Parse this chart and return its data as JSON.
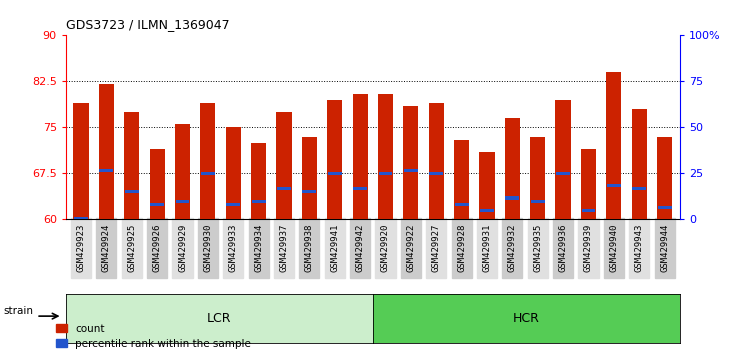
{
  "title": "GDS3723 / ILMN_1369047",
  "samples": [
    "GSM429923",
    "GSM429924",
    "GSM429925",
    "GSM429926",
    "GSM429929",
    "GSM429930",
    "GSM429933",
    "GSM429934",
    "GSM429937",
    "GSM429938",
    "GSM429941",
    "GSM429942",
    "GSM429920",
    "GSM429922",
    "GSM429927",
    "GSM429928",
    "GSM429931",
    "GSM429932",
    "GSM429935",
    "GSM429936",
    "GSM429939",
    "GSM429940",
    "GSM429943",
    "GSM429944"
  ],
  "bar_heights": [
    79.0,
    82.0,
    77.5,
    71.5,
    75.5,
    79.0,
    75.0,
    72.5,
    77.5,
    73.5,
    79.5,
    80.5,
    80.5,
    78.5,
    79.0,
    73.0,
    71.0,
    76.5,
    73.5,
    79.5,
    71.5,
    84.0,
    78.0,
    73.5
  ],
  "blue_dot_values": [
    60.2,
    68.0,
    64.5,
    62.5,
    63.0,
    67.5,
    62.5,
    63.0,
    65.0,
    64.5,
    67.5,
    65.0,
    67.5,
    68.0,
    67.5,
    62.5,
    61.5,
    63.5,
    63.0,
    67.5,
    61.5,
    65.5,
    65.0,
    62.0
  ],
  "group_labels": [
    "LCR",
    "HCR"
  ],
  "group_ranges": [
    [
      0,
      12
    ],
    [
      12,
      24
    ]
  ],
  "ylim_left": [
    60,
    90
  ],
  "ylim_right": [
    0,
    100
  ],
  "yticks_left": [
    60,
    67.5,
    75,
    82.5,
    90
  ],
  "yticks_right": [
    0,
    25,
    50,
    75,
    100
  ],
  "ytick_labels_left": [
    "60",
    "67.5",
    "75",
    "82.5",
    "90"
  ],
  "ytick_labels_right": [
    "0",
    "25",
    "50",
    "75",
    "100%"
  ],
  "hlines": [
    67.5,
    75.0,
    82.5
  ],
  "bar_color": "#cc2200",
  "dot_color": "#2255cc",
  "bar_width": 0.6,
  "legend_count_label": "count",
  "legend_percentile_label": "percentile rank within the sample",
  "strain_label": "strain",
  "lcr_color": "#cceecc",
  "hcr_color": "#55cc55"
}
